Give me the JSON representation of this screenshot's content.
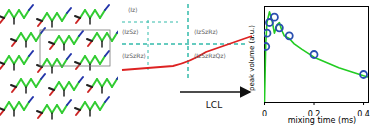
{
  "diagram": {
    "state_labels": [
      "⟨Iz⟩",
      "⟨IzSz⟩",
      "⟨IzSzRz⟩",
      "⟨IzSzRz⟩",
      "⟨IzSzRzQz⟩"
    ],
    "arrow_label": "LCL"
  },
  "chart_data": {
    "type": "line",
    "x_label": "mixing time (ms)",
    "y_label": "peak volume (a.u.)",
    "xlim": [
      0,
      0.42
    ],
    "xticks": [
      0,
      0.2,
      0.4
    ],
    "ylim": [
      0,
      3.6
    ],
    "tick_labels": "x",
    "series": [
      {
        "type": "line",
        "color": "#22cc22",
        "x": [
          0,
          0.005,
          0.01,
          0.02,
          0.03,
          0.04,
          0.05,
          0.06,
          0.07,
          0.08,
          0.1,
          0.12,
          0.15,
          0.2,
          0.25,
          0.3,
          0.35,
          0.4,
          0.42
        ],
        "values": [
          0,
          2.2,
          3.0,
          3.4,
          3.1,
          2.6,
          2.9,
          3.0,
          2.7,
          2.5,
          2.4,
          2.2,
          2.0,
          1.7,
          1.5,
          1.3,
          1.15,
          1.0,
          0.95
        ]
      },
      {
        "type": "scatter",
        "color": "#2a4fb0",
        "marker": "open circle",
        "x": [
          0.005,
          0.01,
          0.02,
          0.04,
          0.06,
          0.1,
          0.2,
          0.4
        ],
        "values": [
          2.1,
          2.6,
          3.0,
          3.2,
          2.8,
          2.5,
          1.8,
          1.05
        ]
      }
    ]
  }
}
